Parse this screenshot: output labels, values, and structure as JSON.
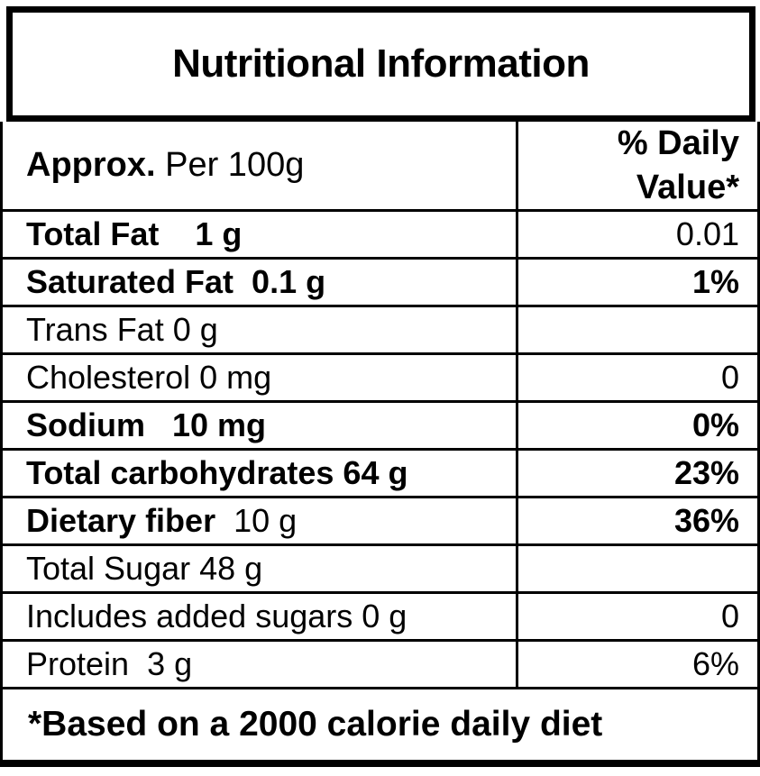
{
  "title": "Nutritional Information",
  "colors": {
    "border": "#000000",
    "text": "#000000",
    "background": "#ffffff"
  },
  "table": {
    "header": {
      "approx_bold": "Approx.",
      "approx_rest": " Per 100g",
      "daily_value_line1": "% Daily",
      "daily_value_line2": "Value*"
    },
    "rows": [
      {
        "label": "Total Fat    1 g",
        "value": "0.01"
      },
      {
        "label": "Saturated Fat  0.1 g",
        "value": "1%"
      },
      {
        "label": "Trans Fat 0 g",
        "value": ""
      },
      {
        "label": "Cholesterol 0 mg",
        "value": "0"
      },
      {
        "label": "Sodium   10 mg",
        "value": "0%"
      },
      {
        "label": "Total carbohydrates 64 g",
        "value": "23%"
      },
      {
        "label": "Dietary fiber",
        "label_suffix": "  10 g",
        "value": "36%"
      },
      {
        "label": "Total Sugar 48 g",
        "value": ""
      },
      {
        "label": "Includes added sugars 0 g",
        "value": "0"
      },
      {
        "label": "Protein  3 g",
        "value": "6%"
      }
    ],
    "footnote": "*Based on a 2000 calorie daily diet"
  }
}
